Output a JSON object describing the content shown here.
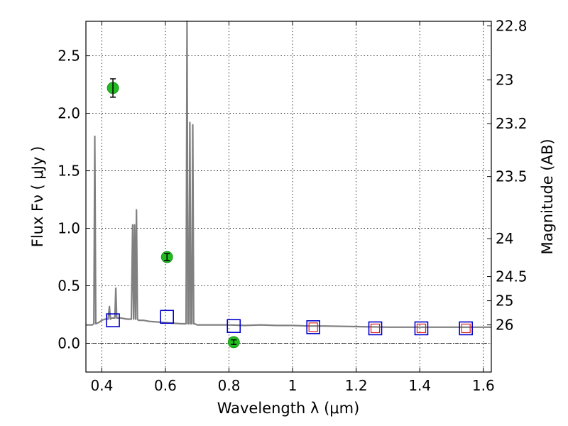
{
  "chart_data": {
    "type": "line",
    "xlabel": "Wavelength  λ (μm)",
    "ylabel": "Flux  Fν  ( μJy )",
    "y2label": "Magnitude (AB)",
    "xlim": [
      0.35,
      1.625
    ],
    "ylim": [
      -0.25,
      2.8
    ],
    "x_ticks": [
      0.4,
      0.6,
      0.8,
      1.0,
      1.2,
      1.4,
      1.6
    ],
    "x_tick_labels": [
      "0.4",
      "0.6",
      "0.8",
      "1",
      "1.2",
      "1.4",
      "1.6"
    ],
    "y_ticks": [
      0.0,
      0.5,
      1.0,
      1.5,
      2.0,
      2.5
    ],
    "y_tick_labels": [
      "0.0",
      "0.5",
      "1.0",
      "1.5",
      "2.0",
      "2.5"
    ],
    "mag_ticks": [
      {
        "flux": 2.76,
        "label": "22.8"
      },
      {
        "flux": 2.29,
        "label": "23"
      },
      {
        "flux": 1.91,
        "label": "23.2"
      },
      {
        "flux": 1.45,
        "label": "23.5"
      },
      {
        "flux": 0.91,
        "label": "24"
      },
      {
        "flux": 0.58,
        "label": "24.5"
      },
      {
        "flux": 0.37,
        "label": "25"
      },
      {
        "flux": 0.16,
        "label": "26"
      }
    ],
    "grid": true,
    "colors": {
      "spectrum": "#808080",
      "observed": "#22bb22",
      "model_box": "#0000cc",
      "model_box_inner": "#dd2222",
      "zero_line": "#000000"
    },
    "series": [
      {
        "kind": "spectrum",
        "x": [
          0.35,
          0.37,
          0.375,
          0.378,
          0.381,
          0.39,
          0.4,
          0.41,
          0.42,
          0.424,
          0.427,
          0.43,
          0.433,
          0.436,
          0.441,
          0.444,
          0.447,
          0.46,
          0.48,
          0.49,
          0.493,
          0.497,
          0.5,
          0.503,
          0.506,
          0.509,
          0.512,
          0.515,
          0.53,
          0.55,
          0.6,
          0.65,
          0.66,
          0.665,
          0.668,
          0.671,
          0.674,
          0.677,
          0.68,
          0.683,
          0.686,
          0.689,
          0.692,
          0.7,
          0.75,
          0.8,
          0.85,
          0.9,
          0.95,
          1.0,
          1.05,
          1.1,
          1.2,
          1.3,
          1.4,
          1.5,
          1.625
        ],
        "y": [
          0.16,
          0.16,
          0.17,
          1.8,
          0.17,
          0.18,
          0.2,
          0.21,
          0.21,
          0.32,
          0.21,
          0.22,
          0.22,
          0.22,
          0.22,
          0.48,
          0.22,
          0.22,
          0.21,
          0.21,
          0.21,
          1.03,
          0.21,
          1.03,
          0.21,
          1.16,
          0.21,
          0.2,
          0.2,
          0.19,
          0.18,
          0.17,
          0.17,
          0.17,
          2.8,
          0.17,
          0.17,
          1.92,
          0.17,
          0.17,
          1.9,
          0.17,
          0.17,
          0.16,
          0.16,
          0.16,
          0.155,
          0.16,
          0.155,
          0.155,
          0.15,
          0.15,
          0.145,
          0.14,
          0.14,
          0.14,
          0.14
        ]
      },
      {
        "kind": "observed",
        "x": [
          0.435,
          0.605,
          0.815
        ],
        "y": [
          2.22,
          0.75,
          0.01
        ],
        "yerr": [
          0.08,
          0.03,
          0.02
        ]
      },
      {
        "kind": "model",
        "x": [
          0.435,
          0.605,
          0.815,
          1.065,
          1.26,
          1.405,
          1.545
        ],
        "y": [
          0.2,
          0.23,
          0.15,
          0.14,
          0.13,
          0.13,
          0.13
        ],
        "inner": [
          false,
          false,
          false,
          true,
          true,
          true,
          true
        ]
      }
    ]
  }
}
